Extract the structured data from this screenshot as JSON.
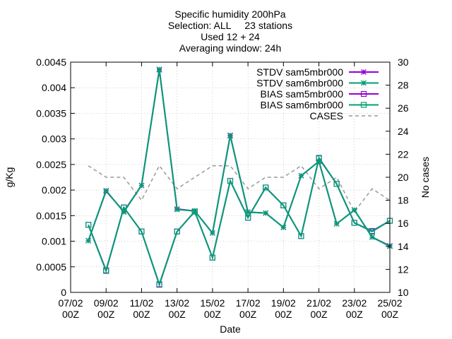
{
  "chart_data": {
    "type": "line",
    "title_lines": [
      "Specific humidity 200hPa",
      "Selection: ALL     23 stations",
      "Used 12 + 24",
      "Averaging window: 24h"
    ],
    "xlabel": "Date",
    "ylabel": "g/Kg",
    "y2label": "No cases",
    "grid": true,
    "legend_position": "top-right",
    "x_range": [
      "2024-02-07T00:00",
      "2024-02-25T00:00"
    ],
    "xticks": [
      {
        "date": "2024-02-07T00:00",
        "line1": "07/02",
        "line2": "00Z"
      },
      {
        "date": "2024-02-09T00:00",
        "line1": "09/02",
        "line2": "00Z"
      },
      {
        "date": "2024-02-11T00:00",
        "line1": "11/02",
        "line2": "00Z"
      },
      {
        "date": "2024-02-13T00:00",
        "line1": "13/02",
        "line2": "00Z"
      },
      {
        "date": "2024-02-15T00:00",
        "line1": "15/02",
        "line2": "00Z"
      },
      {
        "date": "2024-02-17T00:00",
        "line1": "17/02",
        "line2": "00Z"
      },
      {
        "date": "2024-02-19T00:00",
        "line1": "19/02",
        "line2": "00Z"
      },
      {
        "date": "2024-02-21T00:00",
        "line1": "21/02",
        "line2": "00Z"
      },
      {
        "date": "2024-02-23T00:00",
        "line1": "23/02",
        "line2": "00Z"
      },
      {
        "date": "2024-02-25T00:00",
        "line1": "25/02",
        "line2": "00Z"
      }
    ],
    "ylim": [
      0,
      0.0045
    ],
    "yticks": [
      "0",
      "0.0005",
      "0.001",
      "0.0015",
      "0.002",
      "0.0025",
      "0.003",
      "0.0035",
      "0.004",
      "0.0045"
    ],
    "y2lim": [
      10,
      30
    ],
    "y2ticks": [
      "10",
      "12",
      "14",
      "16",
      "18",
      "20",
      "22",
      "24",
      "26",
      "28",
      "30"
    ],
    "x": [
      "2024-02-08T00:00",
      "2024-02-09T00:00",
      "2024-02-10T00:00",
      "2024-02-11T00:00",
      "2024-02-12T00:00",
      "2024-02-13T00:00",
      "2024-02-14T00:00",
      "2024-02-15T00:00",
      "2024-02-16T00:00",
      "2024-02-17T00:00",
      "2024-02-18T00:00",
      "2024-02-19T00:00",
      "2024-02-20T00:00",
      "2024-02-21T00:00",
      "2024-02-22T00:00",
      "2024-02-23T00:00",
      "2024-02-24T00:00",
      "2024-02-25T00:00"
    ],
    "series": [
      {
        "name": "STDV sam5mbr000",
        "color": "#9400d3",
        "marker": "star",
        "axis": "y1",
        "values": [
          0.00101,
          0.00198,
          0.00158,
          0.00209,
          0.00435,
          0.00163,
          0.00159,
          0.00116,
          0.00307,
          0.00157,
          0.00155,
          0.00127,
          0.00228,
          0.00256,
          0.00134,
          0.00161,
          0.00108,
          0.00091
        ]
      },
      {
        "name": "STDV sam6mbr000",
        "color": "#009e73",
        "marker": "star",
        "axis": "y1",
        "values": [
          0.00101,
          0.00199,
          0.00157,
          0.00209,
          0.00436,
          0.00162,
          0.00159,
          0.00116,
          0.00306,
          0.00157,
          0.00155,
          0.00127,
          0.00228,
          0.00256,
          0.00134,
          0.00161,
          0.00108,
          0.0009
        ]
      },
      {
        "name": "BIAS sam5mbr000",
        "color": "#9400d3",
        "marker": "square",
        "axis": "y1",
        "values": [
          0.00132,
          0.00043,
          0.00166,
          0.00119,
          0.00015,
          0.00119,
          0.00158,
          0.00068,
          0.00218,
          0.00146,
          0.00205,
          0.0017,
          0.0011,
          0.00262,
          0.00212,
          0.00136,
          0.0012,
          0.0014
        ]
      },
      {
        "name": "BIAS sam6mbr000",
        "color": "#009e73",
        "marker": "square",
        "axis": "y1",
        "values": [
          0.00132,
          0.00042,
          0.00166,
          0.00119,
          0.00016,
          0.00119,
          0.00158,
          0.00068,
          0.00218,
          0.00146,
          0.00205,
          0.0017,
          0.0011,
          0.00263,
          0.00212,
          0.00136,
          0.00119,
          0.0014
        ]
      },
      {
        "name": "CASES",
        "color": "#999999",
        "marker": "none",
        "dashed": true,
        "axis": "y2",
        "values": [
          21,
          20,
          20,
          18,
          21,
          19,
          20,
          21,
          21,
          19,
          20,
          20,
          21,
          19,
          20,
          17,
          19,
          18
        ]
      }
    ]
  }
}
